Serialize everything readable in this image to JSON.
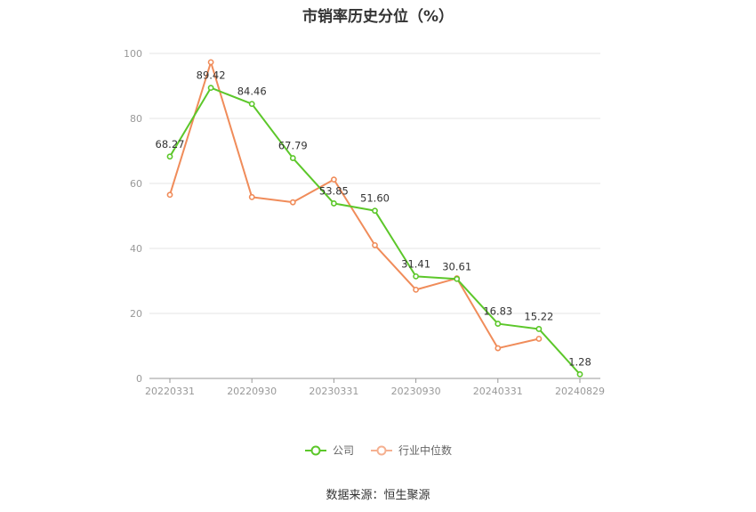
{
  "chart_data": {
    "type": "line",
    "title": "市销率历史分位（%）",
    "x_ticks": [
      "20220331",
      "20220930",
      "20230331",
      "20230930",
      "20240331",
      "20240829"
    ],
    "x": [
      "20220331",
      "20220630",
      "20220930",
      "20221231",
      "20230331",
      "20230630",
      "20230930",
      "20231231",
      "20240331",
      "20240630",
      "20240829"
    ],
    "ylim": [
      0,
      100
    ],
    "y_ticks": [
      "0",
      "20",
      "40",
      "60",
      "80",
      "100"
    ],
    "grid": true,
    "legend_position": "bottom",
    "series": [
      {
        "name": "公司",
        "color": "#5cc72a",
        "values": [
          68.27,
          89.42,
          84.46,
          67.79,
          53.85,
          51.6,
          31.41,
          30.61,
          16.83,
          15.22,
          1.28
        ],
        "labels": [
          "68.27",
          "89.42",
          "84.46",
          "67.79",
          "53.85",
          "51.60",
          "31.41",
          "30.61",
          "16.83",
          "15.22",
          "1.28"
        ]
      },
      {
        "name": "行业中位数",
        "color": "#f08c5a",
        "values": [
          56.5,
          97.3,
          55.8,
          54.2,
          61.2,
          41.0,
          27.3,
          30.8,
          9.3,
          12.2,
          null
        ]
      }
    ]
  },
  "source_text": "数据来源：恒生聚源"
}
